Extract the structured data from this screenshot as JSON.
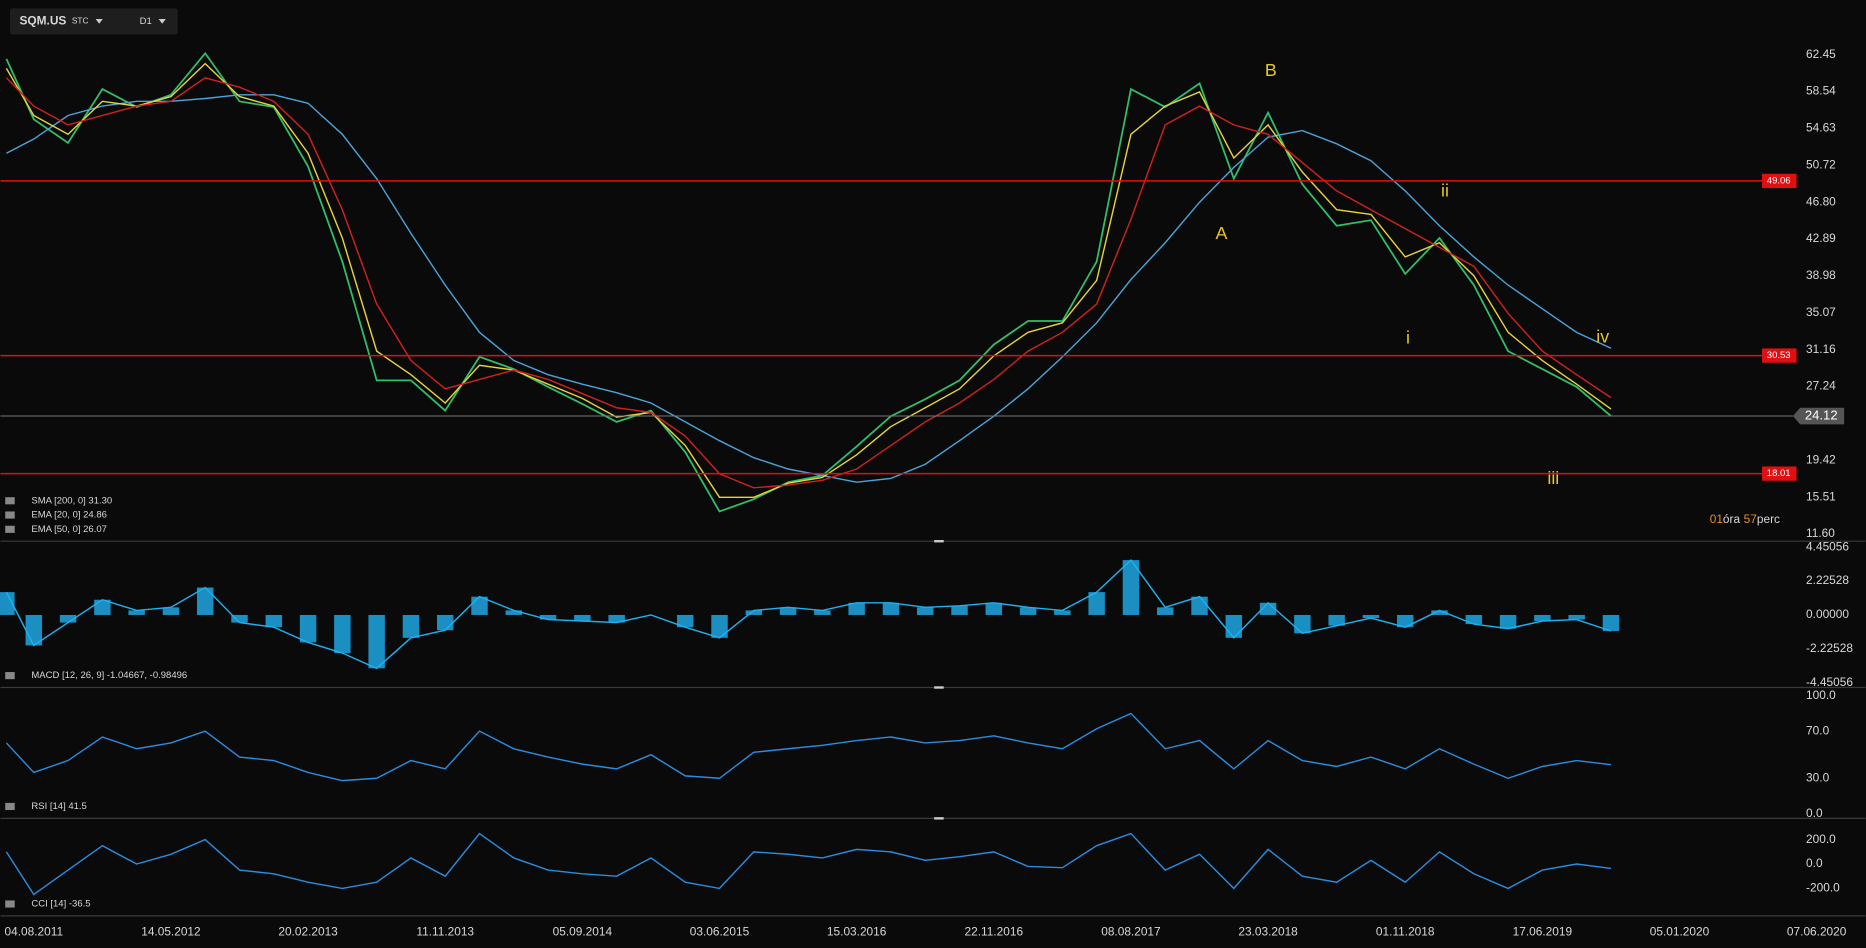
{
  "header": {
    "symbol": "SQM.US",
    "exchange": "STC",
    "timeframe": "D1"
  },
  "countdown": {
    "hours": "01",
    "hours_unit": "óra",
    "minutes": "57",
    "minutes_unit": "perc"
  },
  "chart_data": [
    {
      "type": "line",
      "x": [
        -0.2,
        0,
        0.25,
        0.5,
        0.75,
        1,
        1.25,
        1.5,
        1.75,
        2,
        2.25,
        2.5,
        2.75,
        3,
        3.25,
        3.5,
        3.75,
        4,
        4.25,
        4.5,
        4.75,
        5,
        5.25,
        5.5,
        5.75,
        6,
        6.25,
        6.5,
        6.75,
        7,
        7.25,
        7.5,
        7.75,
        8,
        8.25,
        8.5,
        8.75,
        9,
        9.25,
        9.5,
        9.75,
        10,
        10.25,
        10.5,
        10.75,
        11,
        11.25,
        11.5
      ],
      "xlim": [
        -0.243,
        12.81
      ],
      "xticks": [
        {
          "value": 0,
          "label": "04.08.2011"
        },
        {
          "value": 1,
          "label": "14.05.2012"
        },
        {
          "value": 2,
          "label": "20.02.2013"
        },
        {
          "value": 3,
          "label": "11.11.2013"
        },
        {
          "value": 4,
          "label": "05.09.2014"
        },
        {
          "value": 5,
          "label": "03.06.2015"
        },
        {
          "value": 6,
          "label": "15.03.2016"
        },
        {
          "value": 7,
          "label": "22.11.2016"
        },
        {
          "value": 8,
          "label": "08.08.2017"
        },
        {
          "value": 9,
          "label": "23.03.2018"
        },
        {
          "value": 10,
          "label": "01.11.2018"
        },
        {
          "value": 11,
          "label": "17.06.2019"
        },
        {
          "value": 12,
          "label": "05.01.2020"
        },
        {
          "value": 13,
          "label": "07.06.2020"
        }
      ],
      "ylim": [
        10.84,
        68.25
      ],
      "yticks": [
        62.45,
        58.54,
        54.63,
        50.72,
        {
          "value": 46.8,
          "label": "46.80"
        },
        42.89,
        38.98,
        35.07,
        31.16,
        27.24,
        19.42,
        15.51,
        {
          "value": 11.6,
          "label": "11.60"
        }
      ],
      "series": [
        {
          "color": "#2fbf6a",
          "values": [
            62,
            55.6,
            53.1,
            58.8,
            56.9,
            58.2,
            62.6,
            57.5,
            56.9,
            50.6,
            40.5,
            27.9,
            27.9,
            24.7,
            30.4,
            29.1,
            27.2,
            25.4,
            23.5,
            24.7,
            20.3,
            14.0,
            15.3,
            17.1,
            17.8,
            20.9,
            24.1,
            25.9,
            27.9,
            31.7,
            34.2,
            34.2,
            40.5,
            58.8,
            56.9,
            59.4,
            49.3,
            56.3,
            48.7,
            44.3,
            44.9,
            39.2,
            43.0,
            38.0,
            31.0,
            29.1,
            27.2,
            24.12
          ]
        },
        {
          "name": "SMA [200, 0] 31.30",
          "color": "#4aa3d8",
          "values": [
            52,
            53.5,
            56,
            57,
            57.5,
            57.5,
            57.8,
            58.2,
            58.2,
            57.3,
            54,
            49.3,
            43.5,
            38,
            33,
            30,
            28.5,
            27.5,
            26.6,
            25.5,
            23.5,
            21.5,
            19.7,
            18.5,
            17.8,
            17.1,
            17.5,
            19.0,
            21.5,
            24.1,
            27,
            30.4,
            34,
            38.6,
            42.5,
            46.8,
            50.5,
            53.7,
            54.4,
            53,
            51.2,
            48,
            44.3,
            41,
            38,
            35.5,
            33,
            31.3
          ]
        },
        {
          "name": "EMA [20, 0] 24.86",
          "color": "#e6d23a",
          "values": [
            61,
            56,
            54,
            57.5,
            57,
            58,
            61.5,
            58,
            57,
            52,
            43,
            31,
            28.5,
            25.5,
            29.5,
            29,
            27.5,
            26,
            24,
            24.5,
            21,
            15.5,
            15.5,
            17,
            17.6,
            20,
            23,
            25,
            27,
            30.5,
            33,
            34,
            38.5,
            54,
            57,
            58.5,
            51.5,
            55,
            50,
            46,
            45.5,
            41,
            42.5,
            39,
            33,
            30,
            27.5,
            24.86
          ]
        },
        {
          "name": "EMA [50, 0] 26.07",
          "color": "#d02020",
          "values": [
            60,
            57,
            55,
            56,
            57,
            57.5,
            60,
            59,
            57.5,
            54,
            46,
            36,
            30,
            27,
            28,
            29,
            28,
            26.5,
            25,
            24.5,
            22,
            18,
            16.5,
            16.8,
            17.3,
            18.5,
            21,
            23.5,
            25.5,
            28,
            31,
            33,
            36,
            45,
            55,
            57,
            55,
            54,
            51,
            48,
            46,
            44,
            42,
            40,
            35,
            31,
            28.5,
            26.07
          ]
        }
      ],
      "levels": [
        49.06,
        30.53,
        18.01
      ],
      "level_color": "#e01010",
      "last_price": 24.12,
      "annotations": [
        {
          "text": "A",
          "x": 8.66,
          "y": 43.4
        },
        {
          "text": "B",
          "x": 9.02,
          "y": 60.7
        },
        {
          "text": "i",
          "x": 10.02,
          "y": 32.3
        },
        {
          "text": "ii",
          "x": 10.29,
          "y": 47.9
        },
        {
          "text": "iii",
          "x": 11.08,
          "y": 17.4
        },
        {
          "text": "iv",
          "x": 11.44,
          "y": 32.4
        }
      ],
      "annotation_color": "#e8c820"
    },
    {
      "type": "histogram-line",
      "ylim": [
        -4.76,
        4.84
      ],
      "yticks": [
        4.45056,
        2.22528,
        {
          "value": 0,
          "label": "0.00000"
        },
        -2.22528,
        -4.45056
      ],
      "series": [
        {
          "name": "MACD [12, 26, 9] -1.04667, -0.98496",
          "color": "#1fb0f0",
          "values": [
            1.5,
            -2,
            -0.5,
            1,
            0.3,
            0.5,
            1.8,
            -0.5,
            -0.8,
            -1.8,
            -2.5,
            -3.5,
            -1.5,
            -1,
            1.2,
            0.3,
            -0.3,
            -0.4,
            -0.5,
            0,
            -0.8,
            -1.5,
            0.3,
            0.5,
            0.3,
            0.8,
            0.8,
            0.5,
            0.6,
            0.8,
            0.5,
            0.3,
            1.5,
            3.6,
            0.5,
            1.2,
            -1.5,
            0.8,
            -1.2,
            -0.7,
            -0.2,
            -0.8,
            0.3,
            -0.6,
            -0.9,
            -0.4,
            -0.3,
            -1.05
          ]
        }
      ]
    },
    {
      "type": "line",
      "ylim": [
        -4,
        107
      ],
      "yticks": [
        {
          "value": 100,
          "label": "100.0"
        },
        {
          "value": 70,
          "label": "70.0"
        },
        {
          "value": 30,
          "label": "30.0"
        },
        {
          "value": 0,
          "label": "0.0"
        }
      ],
      "series": [
        {
          "name": "RSI [14] 41.5",
          "color": "#2a8ce0",
          "values": [
            60,
            35,
            45,
            65,
            55,
            60,
            70,
            48,
            45,
            35,
            28,
            30,
            45,
            38,
            70,
            55,
            48,
            42,
            38,
            50,
            32,
            30,
            52,
            55,
            58,
            62,
            65,
            60,
            62,
            66,
            60,
            55,
            72,
            85,
            55,
            62,
            38,
            62,
            45,
            40,
            48,
            38,
            55,
            42,
            30,
            40,
            45,
            41.5
          ]
        }
      ]
    },
    {
      "type": "line",
      "ylim": [
        -426,
        375
      ],
      "yticks": [
        {
          "value": 200,
          "label": "200.0"
        },
        {
          "value": 0,
          "label": "0.0"
        },
        {
          "value": -200,
          "label": "-200.0"
        }
      ],
      "series": [
        {
          "name": "CCI [14] -36.5",
          "color": "#2a8ce0",
          "values": [
            100,
            -250,
            -50,
            150,
            0,
            80,
            200,
            -50,
            -80,
            -150,
            -200,
            -150,
            50,
            -100,
            250,
            50,
            -50,
            -80,
            -100,
            50,
            -150,
            -200,
            100,
            80,
            50,
            120,
            100,
            30,
            60,
            100,
            -20,
            -30,
            150,
            250,
            -50,
            80,
            -200,
            120,
            -100,
            -150,
            30,
            -150,
            100,
            -80,
            -200,
            -50,
            0,
            -36.5
          ]
        }
      ]
    }
  ]
}
